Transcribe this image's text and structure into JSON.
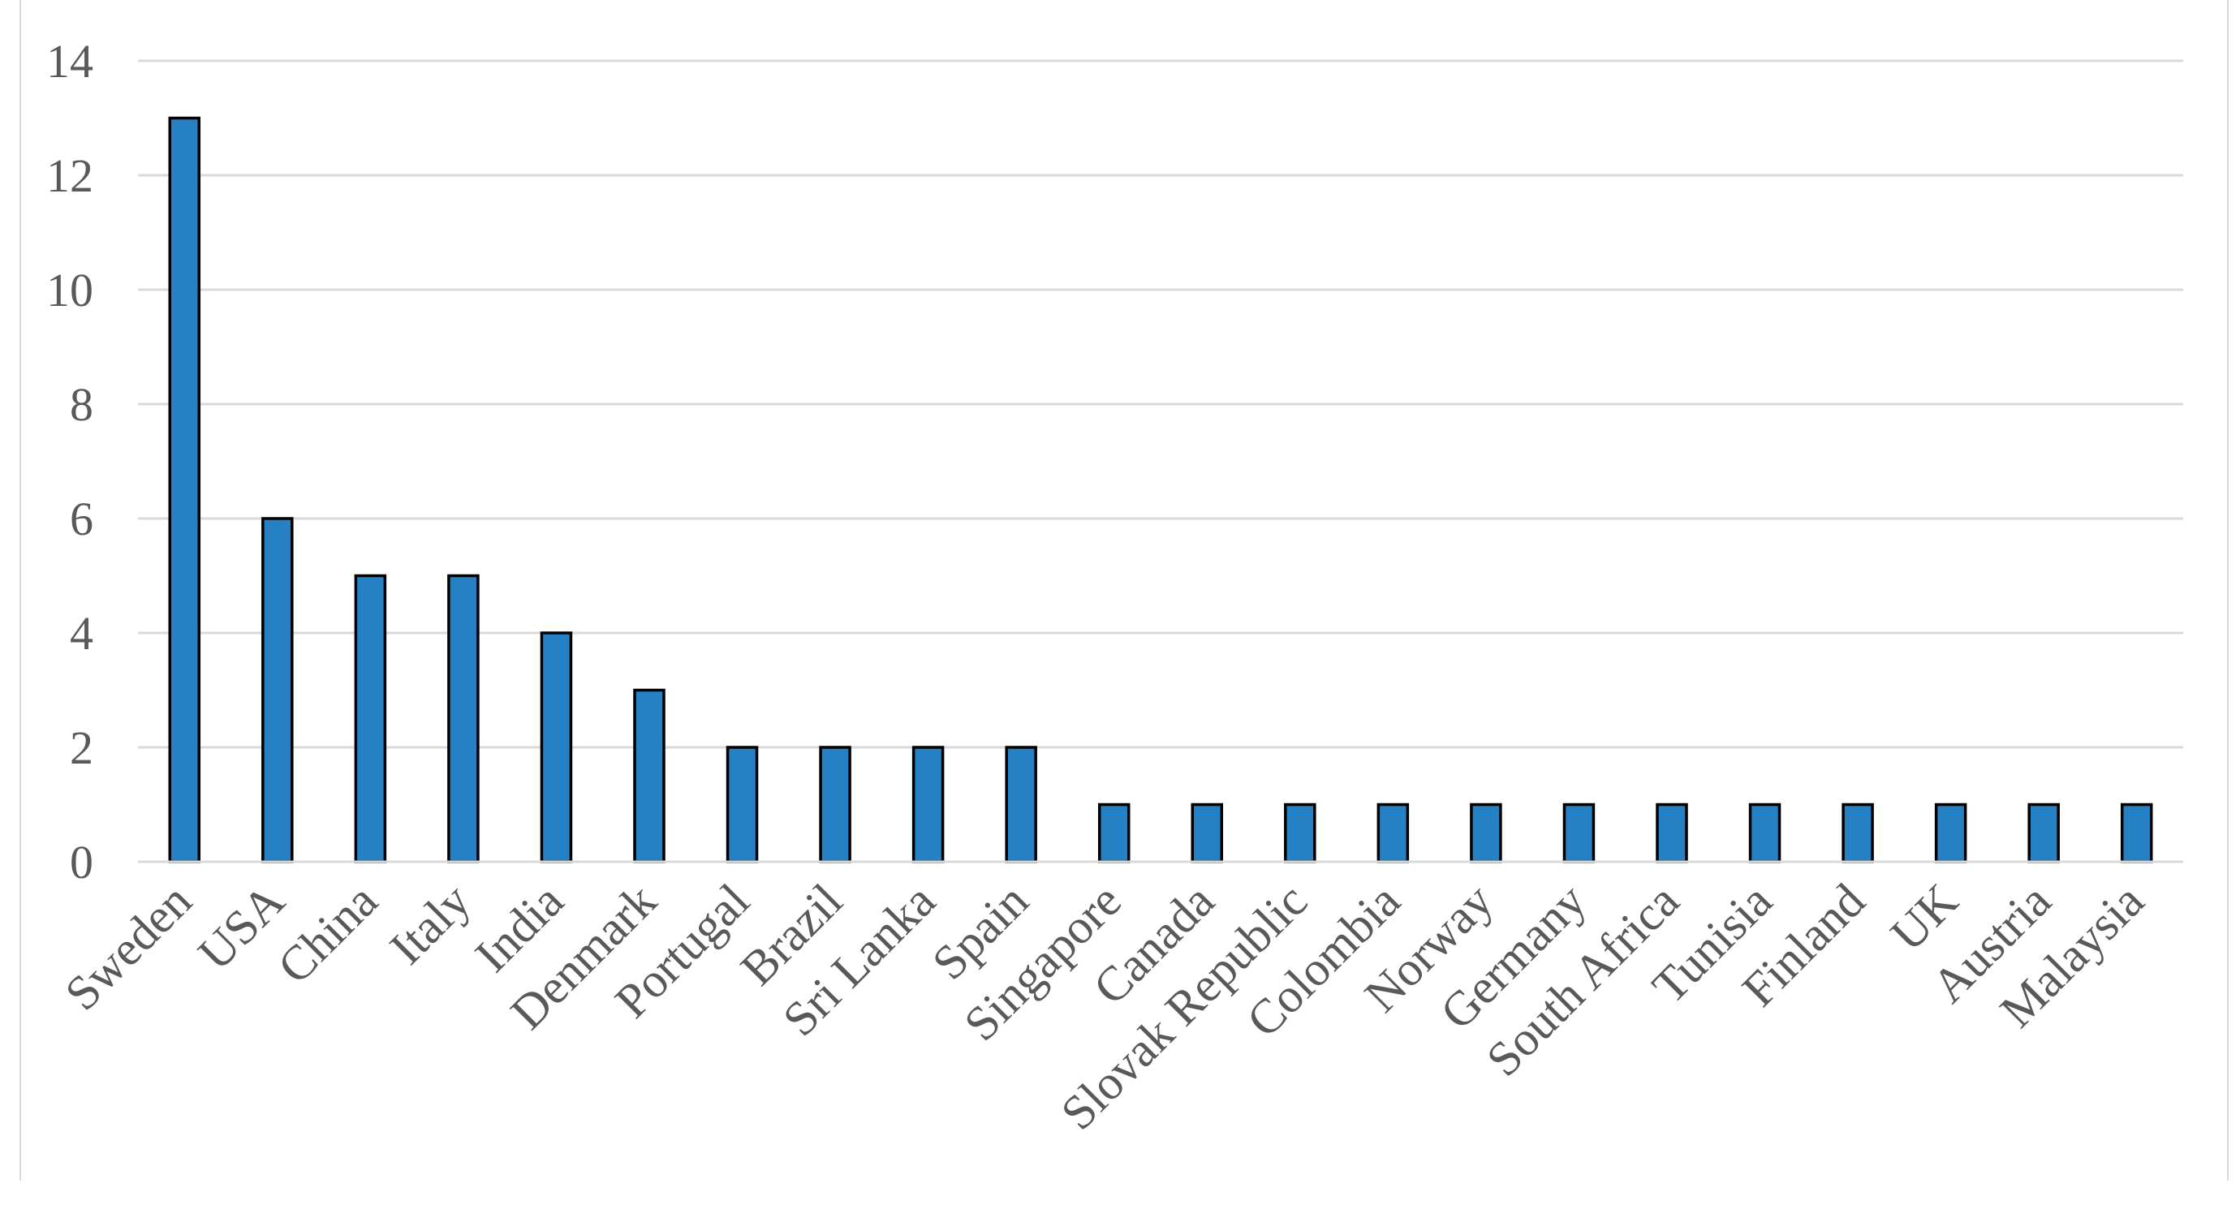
{
  "chart_data": {
    "type": "bar",
    "title": "",
    "xlabel": "",
    "ylabel": "",
    "categories": [
      "Sweden",
      "USA",
      "China",
      "Italy",
      "India",
      "Denmark",
      "Portugal",
      "Brazil",
      "Sri Lanka",
      "Spain",
      "Singapore",
      "Canada",
      "Slovak Republic",
      "Colombia",
      "Norway",
      "Germany",
      "South Africa",
      "Tunisia",
      "Finland",
      "UK",
      "Austria",
      "Malaysia"
    ],
    "values": [
      13,
      6,
      5,
      5,
      4,
      3,
      2,
      2,
      2,
      2,
      1,
      1,
      1,
      1,
      1,
      1,
      1,
      1,
      1,
      1,
      1,
      1
    ],
    "ylim": [
      0,
      14
    ],
    "yticks": [
      "0",
      "2",
      "4",
      "6",
      "8",
      "10",
      "12",
      "14"
    ],
    "grid": true,
    "bar_color": "#2681c4",
    "bar_edge_color": "#000000",
    "gridline_color": "#d9d9d9"
  }
}
